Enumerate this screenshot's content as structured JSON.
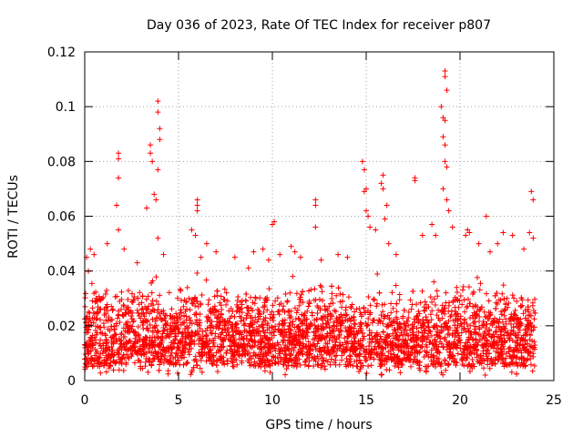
{
  "chart_data": {
    "type": "scatter",
    "title": "Day 036 of 2023, Rate Of TEC Index for receiver p807",
    "xlabel": "GPS time / hours",
    "ylabel": "ROTI / TECUs",
    "xlim": [
      0,
      25
    ],
    "ylim": [
      0,
      0.12
    ],
    "xticks": [
      0,
      5,
      10,
      15,
      20,
      25
    ],
    "xtick_labels": [
      "0",
      "5",
      "10",
      "15",
      "20",
      "25"
    ],
    "yticks": [
      0,
      0.02,
      0.04,
      0.06,
      0.08,
      0.1,
      0.12
    ],
    "ytick_labels": [
      "0",
      "0.02",
      "0.04",
      "0.06",
      "0.08",
      "0.1",
      "0.12"
    ],
    "grid": true,
    "marker": "plus",
    "color": "#ff0000",
    "series": [
      {
        "name": "ROTI",
        "baseline_range": [
          0.005,
          0.035
        ],
        "data_range_x": [
          0,
          24
        ],
        "points": [
          [
            0.1,
            0.045
          ],
          [
            0.3,
            0.048
          ],
          [
            0.5,
            0.046
          ],
          [
            1.2,
            0.05
          ],
          [
            1.8,
            0.083
          ],
          [
            1.8,
            0.081
          ],
          [
            1.8,
            0.074
          ],
          [
            1.7,
            0.064
          ],
          [
            1.8,
            0.055
          ],
          [
            2.1,
            0.048
          ],
          [
            2.8,
            0.043
          ],
          [
            3.3,
            0.063
          ],
          [
            3.5,
            0.086
          ],
          [
            3.5,
            0.083
          ],
          [
            3.6,
            0.08
          ],
          [
            3.7,
            0.068
          ],
          [
            3.8,
            0.066
          ],
          [
            3.9,
            0.102
          ],
          [
            3.9,
            0.098
          ],
          [
            4.0,
            0.092
          ],
          [
            4.0,
            0.088
          ],
          [
            3.9,
            0.077
          ],
          [
            3.9,
            0.052
          ],
          [
            4.2,
            0.046
          ],
          [
            5.7,
            0.055
          ],
          [
            5.9,
            0.053
          ],
          [
            6.0,
            0.066
          ],
          [
            6.0,
            0.064
          ],
          [
            6.0,
            0.062
          ],
          [
            6.2,
            0.045
          ],
          [
            6.5,
            0.05
          ],
          [
            7.0,
            0.047
          ],
          [
            8.0,
            0.045
          ],
          [
            9.0,
            0.047
          ],
          [
            9.5,
            0.048
          ],
          [
            9.8,
            0.044
          ],
          [
            10.0,
            0.057
          ],
          [
            10.1,
            0.058
          ],
          [
            10.4,
            0.046
          ],
          [
            11.0,
            0.049
          ],
          [
            11.2,
            0.047
          ],
          [
            11.5,
            0.045
          ],
          [
            12.3,
            0.066
          ],
          [
            12.3,
            0.064
          ],
          [
            12.3,
            0.056
          ],
          [
            12.6,
            0.044
          ],
          [
            13.5,
            0.046
          ],
          [
            14.0,
            0.045
          ],
          [
            14.8,
            0.08
          ],
          [
            14.9,
            0.077
          ],
          [
            15.0,
            0.07
          ],
          [
            14.9,
            0.069
          ],
          [
            15.0,
            0.062
          ],
          [
            15.1,
            0.06
          ],
          [
            15.2,
            0.056
          ],
          [
            15.5,
            0.055
          ],
          [
            15.8,
            0.072
          ],
          [
            15.9,
            0.075
          ],
          [
            15.9,
            0.07
          ],
          [
            16.1,
            0.064
          ],
          [
            16.0,
            0.059
          ],
          [
            16.2,
            0.05
          ],
          [
            16.6,
            0.046
          ],
          [
            17.6,
            0.074
          ],
          [
            17.6,
            0.073
          ],
          [
            18.0,
            0.053
          ],
          [
            18.5,
            0.057
          ],
          [
            18.7,
            0.053
          ],
          [
            19.0,
            0.1
          ],
          [
            19.2,
            0.113
          ],
          [
            19.2,
            0.111
          ],
          [
            19.3,
            0.106
          ],
          [
            19.1,
            0.096
          ],
          [
            19.2,
            0.095
          ],
          [
            19.1,
            0.089
          ],
          [
            19.2,
            0.086
          ],
          [
            19.2,
            0.08
          ],
          [
            19.3,
            0.078
          ],
          [
            19.1,
            0.07
          ],
          [
            19.3,
            0.066
          ],
          [
            19.4,
            0.062
          ],
          [
            19.6,
            0.056
          ],
          [
            20.3,
            0.053
          ],
          [
            20.4,
            0.055
          ],
          [
            20.5,
            0.054
          ],
          [
            21.0,
            0.05
          ],
          [
            21.4,
            0.06
          ],
          [
            21.6,
            0.047
          ],
          [
            22.0,
            0.05
          ],
          [
            22.3,
            0.054
          ],
          [
            22.8,
            0.053
          ],
          [
            23.4,
            0.048
          ],
          [
            23.7,
            0.054
          ],
          [
            23.8,
            0.069
          ],
          [
            23.9,
            0.066
          ],
          [
            23.9,
            0.052
          ]
        ]
      }
    ]
  }
}
